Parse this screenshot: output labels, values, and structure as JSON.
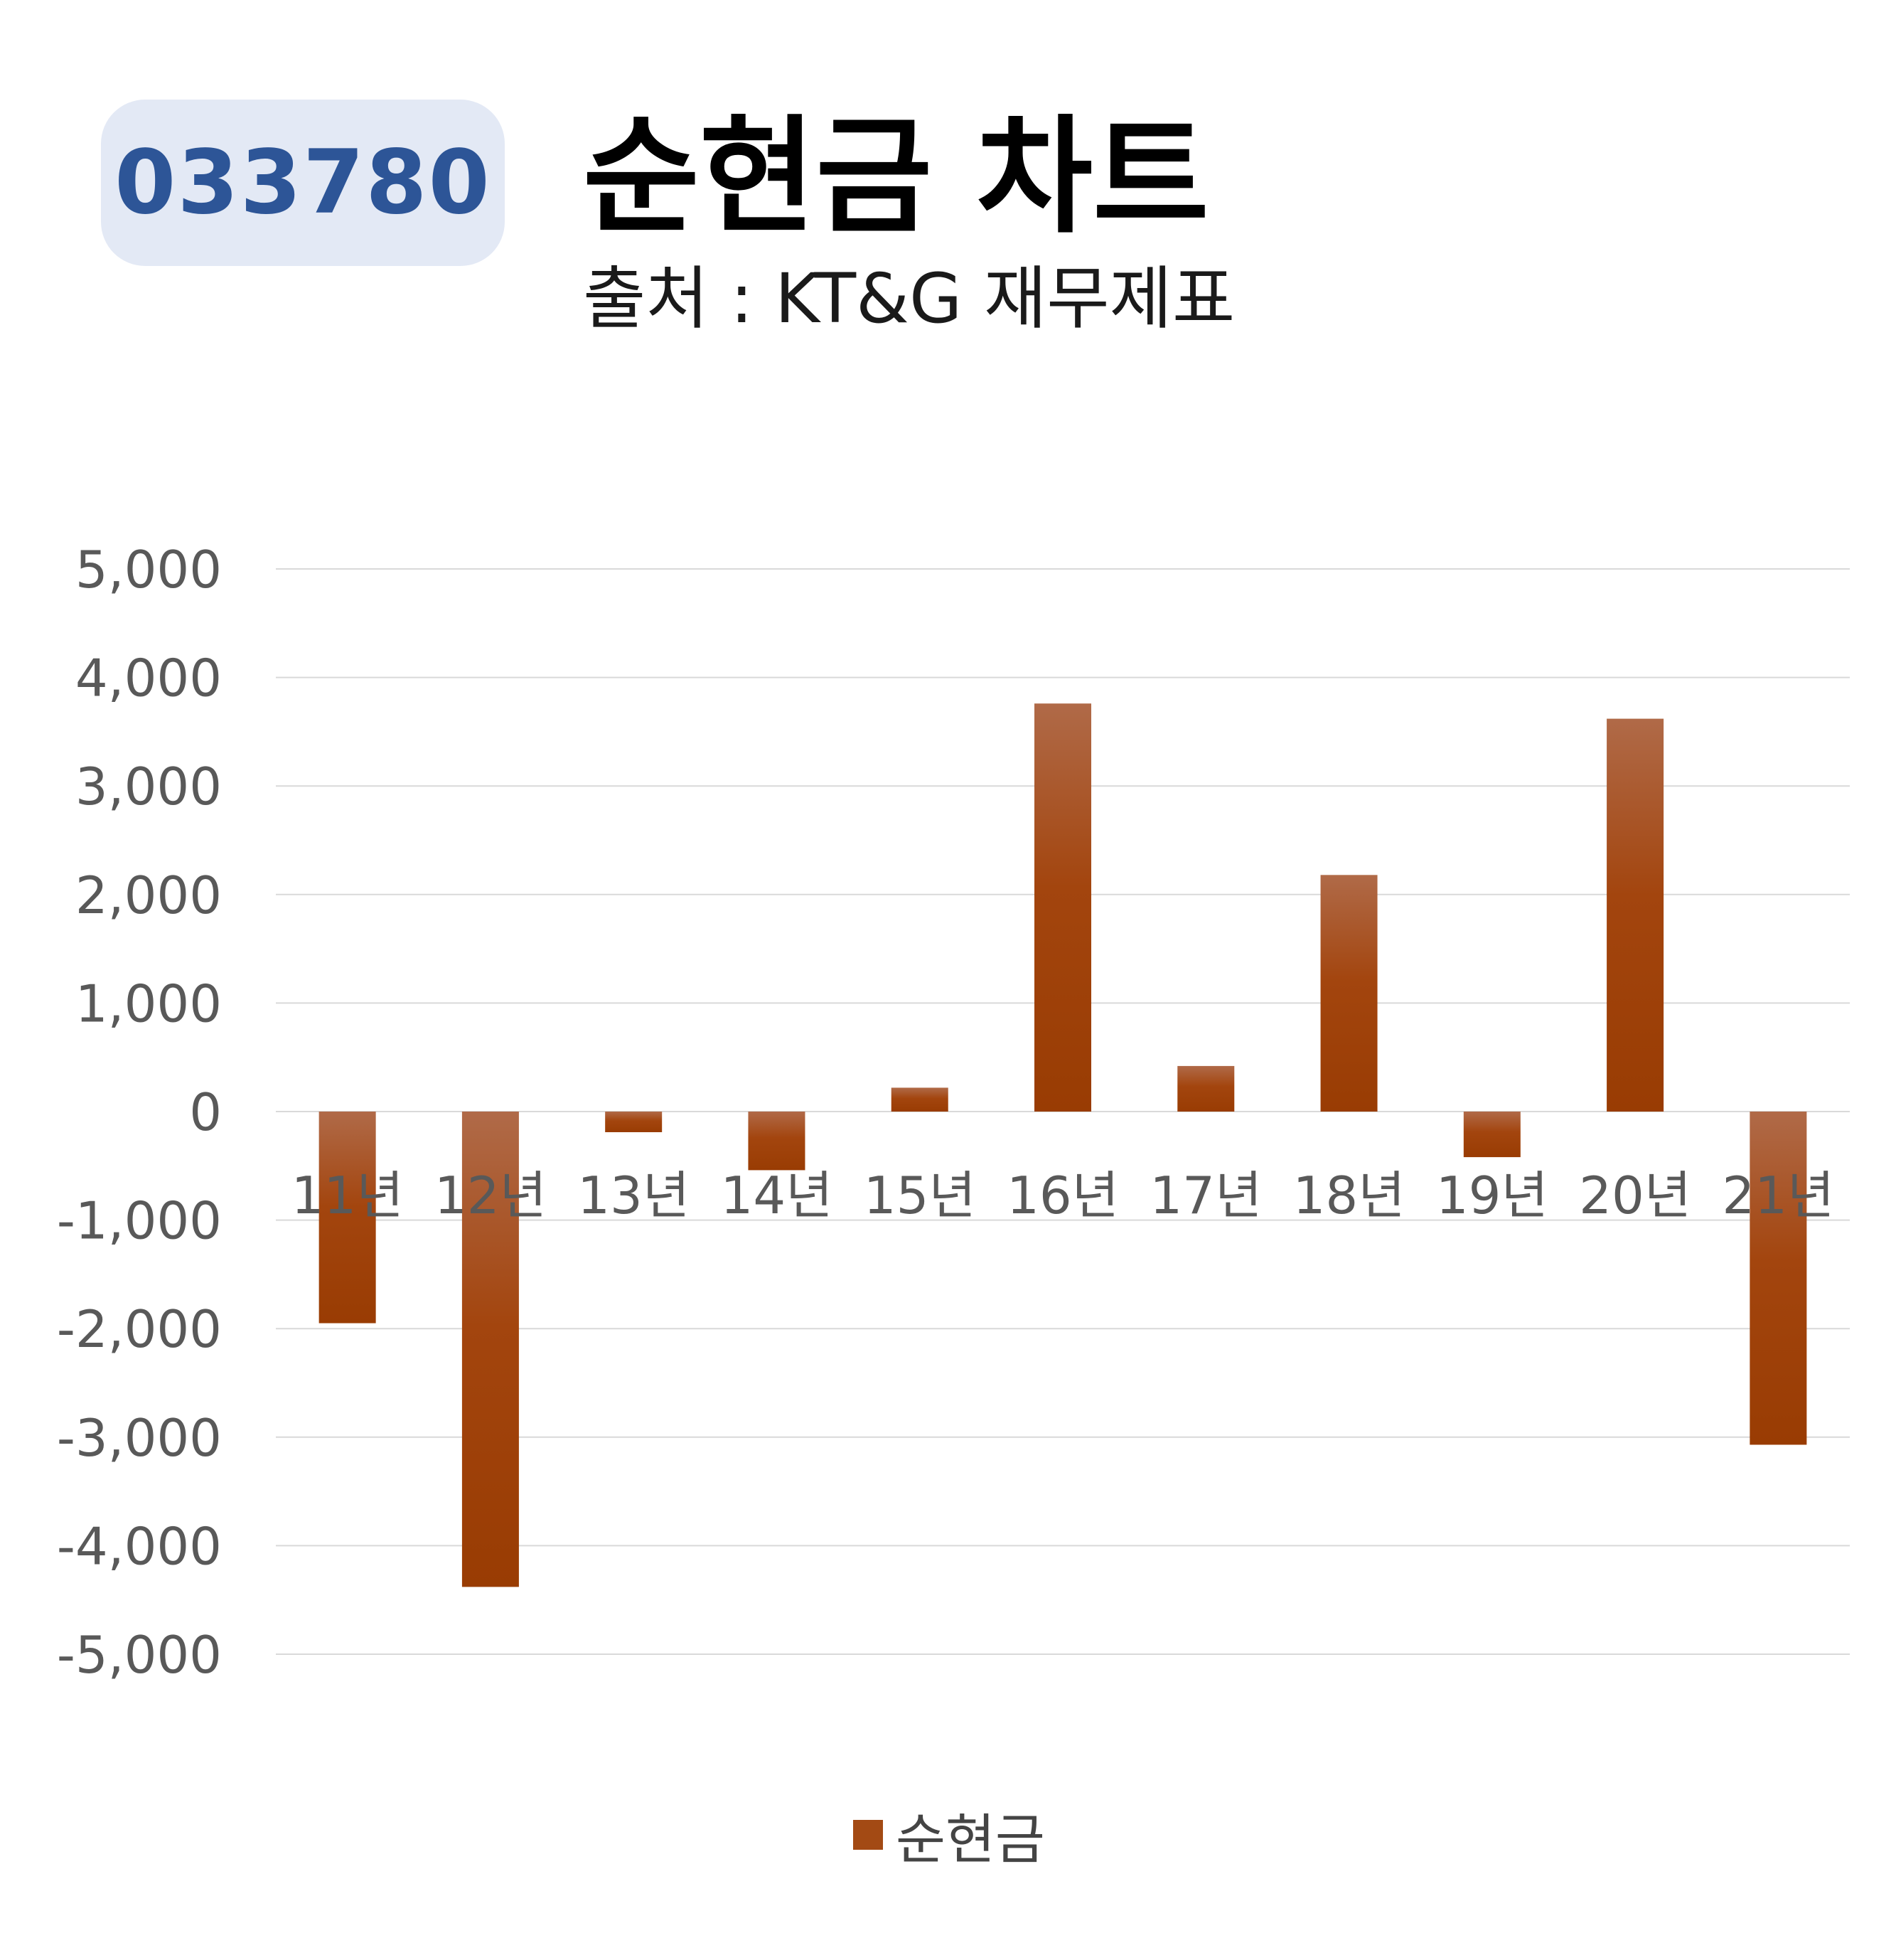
{
  "badge": {
    "code": "033780"
  },
  "header": {
    "title": "순현금 차트",
    "subtitle": "출처 : KT&G 재무제표"
  },
  "colors": {
    "badge_bg": "#e3e9f5",
    "badge_text": "#2d5597",
    "bar_top": "#b06a48",
    "bar_bottom": "#9a3c06",
    "grid": "#d9d9d9",
    "axis_text": "#595959"
  },
  "chart_data": {
    "type": "bar",
    "categories": [
      "11년",
      "12년",
      "13년",
      "14년",
      "15년",
      "16년",
      "17년",
      "18년",
      "19년",
      "20년",
      "21년"
    ],
    "series": [
      {
        "name": "순현금",
        "values": [
          -1950,
          -4380,
          -190,
          -540,
          220,
          3760,
          420,
          2180,
          -420,
          3620,
          -3070
        ]
      }
    ],
    "y_ticks": [
      "5,000",
      "4,000",
      "3,000",
      "2,000",
      "1,000",
      "0",
      "-1,000",
      "-2,000",
      "-3,000",
      "-4,000",
      "-5,000"
    ],
    "ylim": [
      -5000,
      5000
    ],
    "grid": true,
    "legend": "bottom"
  }
}
